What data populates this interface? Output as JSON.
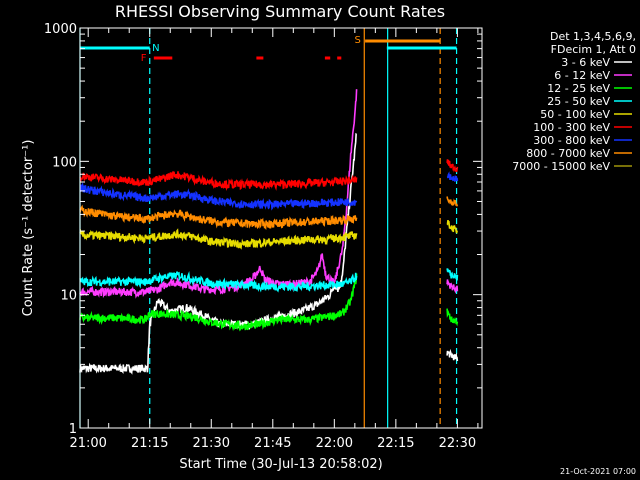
{
  "chart_data": {
    "type": "line",
    "title": "RHESSI Observing Summary Count Rates",
    "xlabel": "Start Time (30-Jul-13 20:58:02)",
    "ylabel": "Count Rate (s⁻¹ detector⁻¹)",
    "y_scale": "log",
    "ylim": [
      1,
      1000
    ],
    "x_unit": "minutes after 20:58:02",
    "xlim": [
      0,
      98
    ],
    "x_ticks": [
      {
        "label": "21:00",
        "x": 2
      },
      {
        "label": "21:15",
        "x": 17
      },
      {
        "label": "21:30",
        "x": 32
      },
      {
        "label": "21:45",
        "x": 47
      },
      {
        "label": "22:00",
        "x": 62
      },
      {
        "label": "22:15",
        "x": 77
      },
      {
        "label": "22:30",
        "x": 92
      }
    ],
    "y_ticks": [
      {
        "label": "1",
        "y": 1
      },
      {
        "label": "10",
        "y": 10
      },
      {
        "label": "100",
        "y": 100
      },
      {
        "label": "1000",
        "y": 1000
      }
    ],
    "legend": {
      "placement": "right",
      "header_lines": [
        "Det 1,3,4,5,6,9,",
        "FDecim 1, Att 0"
      ],
      "entries": [
        {
          "label": "3 - 6 keV",
          "color": "#ffffff"
        },
        {
          "label": "6 - 12 keV",
          "color": "#ff3cff"
        },
        {
          "label": "12 - 25 keV",
          "color": "#00ff00"
        },
        {
          "label": "25 - 50 keV",
          "color": "#00ffff"
        },
        {
          "label": "50 - 100 keV",
          "color": "#e6dc00"
        },
        {
          "label": "100 - 300 keV",
          "color": "#ff0000"
        },
        {
          "label": "300 - 800 keV",
          "color": "#1432ff"
        },
        {
          "label": "800 - 7000 keV",
          "color": "#ff8c00"
        },
        {
          "label": "7000 - 15000 keV",
          "color": "#a0960a"
        }
      ]
    },
    "series": [
      {
        "name": "3 - 6 keV",
        "color": "#ffffff",
        "points": [
          [
            0,
            2.8
          ],
          [
            16.5,
            2.8
          ],
          [
            17,
            6
          ],
          [
            19,
            9
          ],
          [
            22,
            7.5
          ],
          [
            26,
            8
          ],
          [
            30,
            7
          ],
          [
            34,
            6
          ],
          [
            38,
            6
          ],
          [
            42,
            6
          ],
          [
            46,
            6.5
          ],
          [
            50,
            7
          ],
          [
            54,
            7.5
          ],
          [
            58,
            8.5
          ],
          [
            61,
            10
          ],
          [
            62,
            12
          ],
          [
            63,
            11
          ],
          [
            64,
            14
          ],
          [
            65,
            30
          ],
          [
            66,
            60
          ],
          [
            67,
            120
          ],
          [
            67.5,
            170
          ]
        ],
        "segments_after_gap": [
          [
            89.5,
            3.7
          ],
          [
            90.5,
            3.5
          ],
          [
            92,
            3.3
          ]
        ]
      },
      {
        "name": "6 - 12 keV",
        "color": "#ff3cff",
        "points": [
          [
            0,
            10.5
          ],
          [
            5,
            10.5
          ],
          [
            10,
            10.5
          ],
          [
            16,
            10.5
          ],
          [
            19,
            11
          ],
          [
            22,
            12.5
          ],
          [
            26,
            12
          ],
          [
            30,
            11
          ],
          [
            34,
            11
          ],
          [
            38,
            11.5
          ],
          [
            42,
            13
          ],
          [
            44,
            16
          ],
          [
            45,
            13
          ],
          [
            48,
            12
          ],
          [
            52,
            12
          ],
          [
            56,
            12.5
          ],
          [
            58,
            15
          ],
          [
            59,
            20
          ],
          [
            60,
            14
          ],
          [
            62,
            12
          ],
          [
            64,
            22
          ],
          [
            65,
            45
          ],
          [
            66,
            110
          ],
          [
            67,
            230
          ],
          [
            67.5,
            350
          ]
        ],
        "segments_after_gap": [
          [
            89.5,
            12.5
          ],
          [
            90.5,
            11.5
          ],
          [
            92,
            11
          ]
        ]
      },
      {
        "name": "12 - 25 keV",
        "color": "#00ff00",
        "points": [
          [
            0,
            6.7
          ],
          [
            8,
            6.7
          ],
          [
            16,
            6.5
          ],
          [
            17,
            7.2
          ],
          [
            20,
            7.2
          ],
          [
            24,
            7
          ],
          [
            28,
            6.8
          ],
          [
            32,
            6.2
          ],
          [
            36,
            6
          ],
          [
            40,
            5.8
          ],
          [
            44,
            6
          ],
          [
            48,
            6.5
          ],
          [
            52,
            6.5
          ],
          [
            56,
            6.5
          ],
          [
            60,
            6.8
          ],
          [
            64,
            7.2
          ],
          [
            66,
            9
          ],
          [
            67.5,
            14
          ]
        ],
        "segments_after_gap": [
          [
            89.5,
            7.5
          ],
          [
            90.5,
            6.5
          ],
          [
            92,
            6.3
          ]
        ]
      },
      {
        "name": "25 - 50 keV",
        "color": "#00ffff",
        "points": [
          [
            0,
            12.5
          ],
          [
            8,
            12.5
          ],
          [
            16,
            12.5
          ],
          [
            20,
            13.5
          ],
          [
            24,
            14
          ],
          [
            28,
            13
          ],
          [
            32,
            12.2
          ],
          [
            36,
            12
          ],
          [
            40,
            11.8
          ],
          [
            44,
            11.6
          ],
          [
            48,
            11.5
          ],
          [
            52,
            11.5
          ],
          [
            56,
            11.6
          ],
          [
            60,
            11.8
          ],
          [
            64,
            12
          ],
          [
            66,
            12.5
          ],
          [
            67.5,
            14
          ]
        ],
        "segments_after_gap": [
          [
            89.5,
            15
          ],
          [
            90.5,
            14
          ],
          [
            92,
            13.5
          ]
        ]
      },
      {
        "name": "50 - 100 keV",
        "color": "#e6dc00",
        "points": [
          [
            0,
            28
          ],
          [
            8,
            27.5
          ],
          [
            16,
            26.5
          ],
          [
            20,
            27.5
          ],
          [
            24,
            28.5
          ],
          [
            28,
            27
          ],
          [
            32,
            25
          ],
          [
            36,
            24.5
          ],
          [
            40,
            24
          ],
          [
            44,
            24.5
          ],
          [
            48,
            25
          ],
          [
            52,
            25.5
          ],
          [
            56,
            26
          ],
          [
            60,
            26
          ],
          [
            64,
            27
          ],
          [
            67.5,
            28
          ]
        ],
        "segments_after_gap": [
          [
            89.5,
            35
          ],
          [
            90.5,
            32
          ],
          [
            92,
            30
          ]
        ]
      },
      {
        "name": "100 - 300 keV",
        "color": "#ff0000",
        "points": [
          [
            0,
            78
          ],
          [
            8,
            73
          ],
          [
            16,
            70
          ],
          [
            20,
            74
          ],
          [
            23,
            80
          ],
          [
            26,
            77
          ],
          [
            30,
            71
          ],
          [
            34,
            68
          ],
          [
            38,
            67
          ],
          [
            42,
            67
          ],
          [
            46,
            67
          ],
          [
            50,
            67.5
          ],
          [
            54,
            68
          ],
          [
            58,
            69
          ],
          [
            62,
            70
          ],
          [
            66,
            72
          ],
          [
            67.5,
            73
          ]
        ],
        "segments_after_gap": [
          [
            89.5,
            100
          ],
          [
            90.5,
            92
          ],
          [
            92,
            88
          ]
        ]
      },
      {
        "name": "300 - 800 keV",
        "color": "#1432ff",
        "points": [
          [
            0,
            63
          ],
          [
            8,
            57
          ],
          [
            16,
            53
          ],
          [
            20,
            55
          ],
          [
            24,
            57
          ],
          [
            28,
            55
          ],
          [
            32,
            51
          ],
          [
            36,
            49
          ],
          [
            40,
            48
          ],
          [
            44,
            47.5
          ],
          [
            48,
            47.5
          ],
          [
            52,
            48
          ],
          [
            56,
            48.5
          ],
          [
            60,
            49
          ],
          [
            64,
            49.5
          ],
          [
            67.5,
            50
          ]
        ],
        "segments_after_gap": [
          [
            89.5,
            80
          ],
          [
            90.5,
            76
          ],
          [
            92,
            73
          ]
        ]
      },
      {
        "name": "800 - 7000 keV",
        "color": "#ff8c00",
        "points": [
          [
            0,
            43
          ],
          [
            8,
            39
          ],
          [
            16,
            37
          ],
          [
            20,
            39
          ],
          [
            23,
            41
          ],
          [
            26,
            39
          ],
          [
            30,
            36.5
          ],
          [
            34,
            35
          ],
          [
            38,
            34.5
          ],
          [
            42,
            34
          ],
          [
            46,
            34
          ],
          [
            50,
            34.5
          ],
          [
            54,
            35
          ],
          [
            58,
            35.5
          ],
          [
            62,
            36
          ],
          [
            66,
            37
          ],
          [
            67.5,
            37
          ]
        ],
        "segments_after_gap": [
          [
            89.5,
            52
          ],
          [
            90.5,
            50
          ],
          [
            92,
            48
          ]
        ]
      }
    ],
    "annotations": [
      {
        "text": "N",
        "color": "#00ffff",
        "x": 18.5
      },
      {
        "text": "F",
        "color": "#ff0000",
        "x": 15.5
      },
      {
        "text": "S",
        "color": "#ff8c00",
        "x": 67.7
      }
    ],
    "state_bars": [
      {
        "color": "#00ffff",
        "x_from": 0,
        "x_to": 17
      },
      {
        "color": "#00ffff",
        "x_from": 74.8,
        "x_to": 91.8
      },
      {
        "color": "#ff8c00",
        "x_from": 69.5,
        "x_to": 87.8
      },
      {
        "color": "#ff0000",
        "x_from": 18,
        "x_to": 22.5
      },
      {
        "color": "#ff0000",
        "x_from": 43,
        "x_to": 44.7
      },
      {
        "color": "#ff0000",
        "x_from": 59.7,
        "x_to": 61
      },
      {
        "color": "#ff0000",
        "x_from": 62.7,
        "x_to": 63.7
      }
    ],
    "vertical_lines": [
      {
        "color": "#00ffff",
        "x": 0,
        "dash": false
      },
      {
        "color": "#00ffff",
        "x": 17,
        "dash": true
      },
      {
        "color": "#ff8c00",
        "x": 69.3,
        "dash": false
      },
      {
        "color": "#00ffff",
        "x": 75,
        "dash": false
      },
      {
        "color": "#ff8c00",
        "x": 87.8,
        "dash": true
      },
      {
        "color": "#00ffff",
        "x": 91.8,
        "dash": true
      }
    ]
  },
  "footer": {
    "timestamp": "21-Oct-2021 07:00"
  }
}
